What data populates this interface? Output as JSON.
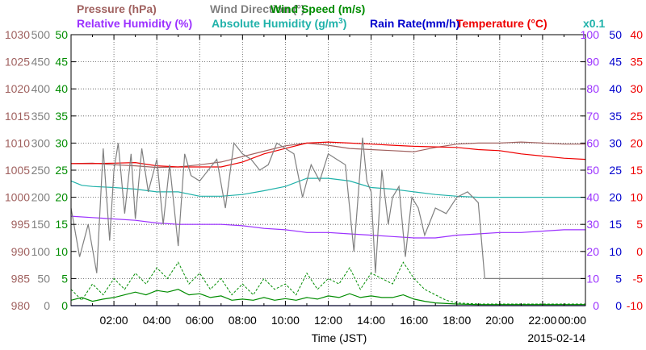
{
  "chart_data": {
    "type": "line",
    "date": "2015-02-14",
    "xlabel": "Time (JST)",
    "x_ticks": [
      "02:00",
      "04:00",
      "06:00",
      "08:00",
      "10:00",
      "12:00",
      "14:00",
      "16:00",
      "18:00",
      "20:00",
      "22:00",
      "00:00"
    ],
    "grid": true,
    "legend_rows": [
      [
        {
          "text": "Pressure (hPa)",
          "color": "#a0615f"
        },
        {
          "text": "Wind Direction (°)",
          "color": "#808080"
        },
        {
          "text": "Wind Speed (m/s)",
          "color": "#008c00"
        }
      ],
      [
        {
          "text": "Relative Humidity (%)",
          "color": "#9b30ff"
        },
        {
          "text": "Absolute Humidity (g/m",
          "color": "#20b2aa",
          "sup": "3",
          "tail": ")"
        },
        {
          "text": "Rain Rate(mm/h)",
          "color": "#0000cd"
        },
        {
          "text": "Temperature (°C)",
          "color": "#ee0000"
        },
        {
          "text": "x0.1",
          "color": "#20b2aa"
        }
      ]
    ],
    "axes": {
      "pressure": {
        "color": "#a0615f",
        "ticks": [
          "1030",
          "1025",
          "1020",
          "1015",
          "1010",
          "1005",
          "1000",
          "995",
          "990",
          "985",
          "980"
        ]
      },
      "wind_dir": {
        "color": "#808080",
        "ticks": [
          "500",
          "450",
          "400",
          "350",
          "300",
          "250",
          "200",
          "150",
          "100",
          "50",
          "0"
        ]
      },
      "wind_speed": {
        "color": "#008c00",
        "ticks": [
          "50",
          "45",
          "40",
          "35",
          "30",
          "25",
          "20",
          "15",
          "10",
          "5",
          "0"
        ]
      },
      "humidity": {
        "color": "#9b30ff",
        "ticks": [
          "100",
          "90",
          "80",
          "70",
          "60",
          "50",
          "40",
          "30",
          "20",
          "10",
          "0"
        ]
      },
      "rain_abs": {
        "color": "#0000cd",
        "ticks": [
          "50",
          "45",
          "40",
          "35",
          "30",
          "25",
          "20",
          "15",
          "10",
          "5",
          "0"
        ]
      },
      "temperature": {
        "color": "#ee0000",
        "ticks": [
          "40",
          "35",
          "30",
          "25",
          "20",
          "15",
          "10",
          "5",
          "0",
          "-5",
          "-10"
        ]
      }
    },
    "x_range_hours": [
      0,
      24
    ],
    "series": [
      {
        "name": "Pressure",
        "unit": "hPa",
        "color": "#a0615f",
        "ylim": [
          980,
          1030
        ],
        "x": [
          0,
          1,
          2,
          3,
          4,
          5,
          6,
          7,
          8,
          9,
          10,
          11,
          12,
          13,
          14,
          15,
          16,
          17,
          18,
          19,
          20,
          21,
          22,
          23,
          24
        ],
        "y": [
          1006.2,
          1006.3,
          1006.0,
          1005.8,
          1005.5,
          1005.6,
          1006.0,
          1006.5,
          1007.5,
          1008.5,
          1009.5,
          1010.0,
          1009.6,
          1009.0,
          1008.8,
          1008.6,
          1008.4,
          1009.2,
          1009.8,
          1010.0,
          1010.0,
          1010.2,
          1010.0,
          1009.8,
          1009.8
        ]
      },
      {
        "name": "Temperature",
        "unit": "°C",
        "color": "#ee0000",
        "ylim": [
          -10,
          40
        ],
        "x": [
          0,
          1,
          2,
          3,
          4,
          5,
          6,
          7,
          8,
          9,
          10,
          11,
          12,
          13,
          14,
          15,
          16,
          17,
          18,
          19,
          20,
          21,
          22,
          23,
          24
        ],
        "y": [
          16.2,
          16.2,
          16.3,
          16.4,
          15.8,
          15.6,
          15.6,
          15.6,
          16.5,
          18.0,
          19.0,
          20.0,
          20.2,
          20.0,
          19.8,
          19.6,
          19.4,
          19.3,
          19.2,
          18.8,
          18.6,
          18.0,
          17.6,
          17.2,
          17.0
        ]
      },
      {
        "name": "Absolute Humidity",
        "unit": "g/m3 x0.1",
        "color": "#20b2aa",
        "ylim": [
          0,
          50
        ],
        "x": [
          0,
          0.5,
          1,
          2,
          3,
          4,
          5,
          6,
          7,
          8,
          9,
          10,
          11,
          12,
          13,
          14,
          15,
          16,
          17,
          18,
          19,
          20,
          21,
          22,
          23,
          24
        ],
        "y": [
          23.0,
          22.2,
          22.0,
          21.8,
          21.5,
          21.0,
          21.0,
          20.2,
          20.2,
          20.5,
          21.2,
          22.0,
          23.5,
          23.5,
          23.0,
          21.8,
          21.5,
          21.0,
          20.5,
          20.2,
          20.0,
          20.0,
          20.0,
          20.0,
          20.0,
          20.0
        ]
      },
      {
        "name": "Relative Humidity",
        "unit": "%",
        "color": "#9b30ff",
        "ylim": [
          0,
          100
        ],
        "x": [
          0,
          1,
          2,
          3,
          4,
          5,
          6,
          7,
          8,
          9,
          10,
          11,
          12,
          13,
          14,
          15,
          16,
          17,
          18,
          19,
          20,
          21,
          22,
          23,
          24
        ],
        "y": [
          33.0,
          32.5,
          32.0,
          31.5,
          30.5,
          30.0,
          30.0,
          30.0,
          29.5,
          28.5,
          28.0,
          27.0,
          27.0,
          26.5,
          26.0,
          25.5,
          25.0,
          25.0,
          26.0,
          26.5,
          27.0,
          27.0,
          27.5,
          28.0,
          28.0
        ]
      },
      {
        "name": "Wind Direction",
        "unit": "°",
        "color": "#808080",
        "ylim": [
          0,
          500
        ],
        "x": [
          0,
          0.4,
          0.8,
          1.2,
          1.5,
          1.8,
          2.0,
          2.2,
          2.5,
          2.8,
          3.0,
          3.3,
          3.6,
          4.0,
          4.3,
          4.6,
          5.0,
          5.3,
          5.6,
          6.0,
          6.4,
          6.8,
          7.2,
          7.6,
          8.0,
          8.4,
          8.8,
          9.2,
          9.6,
          10.0,
          10.4,
          10.8,
          11.2,
          11.6,
          12.0,
          12.4,
          12.8,
          13.2,
          13.6,
          13.8,
          14.0,
          14.2,
          14.5,
          14.8,
          15.0,
          15.3,
          15.6,
          15.9,
          16.2,
          16.5,
          17.0,
          17.5,
          18.0,
          18.5,
          19.0,
          19.3,
          19.5,
          20.0,
          21.0,
          22.0,
          23.0,
          24.0
        ],
        "y": [
          180,
          90,
          150,
          60,
          290,
          120,
          250,
          300,
          170,
          280,
          160,
          290,
          210,
          270,
          150,
          260,
          110,
          280,
          240,
          230,
          250,
          270,
          180,
          300,
          280,
          270,
          250,
          260,
          300,
          290,
          280,
          200,
          260,
          230,
          280,
          270,
          260,
          100,
          310,
          230,
          210,
          60,
          250,
          150,
          200,
          220,
          90,
          200,
          180,
          130,
          180,
          170,
          200,
          210,
          190,
          50,
          50,
          50,
          50,
          50,
          50,
          50
        ]
      },
      {
        "name": "Wind Speed",
        "unit": "m/s",
        "color": "#008c00",
        "ylim": [
          0,
          50
        ],
        "x": [
          0,
          0.5,
          1,
          1.5,
          2,
          2.5,
          3,
          3.5,
          4,
          4.5,
          5,
          5.5,
          6,
          6.5,
          7,
          7.5,
          8,
          8.5,
          9,
          9.5,
          10,
          10.5,
          11,
          11.5,
          12,
          12.5,
          13,
          13.5,
          14,
          14.5,
          15,
          15.5,
          16,
          16.5,
          17,
          18,
          19,
          20,
          21,
          22,
          23,
          24
        ],
        "y": [
          1.0,
          1.5,
          0.8,
          1.2,
          1.5,
          2.0,
          2.5,
          2.0,
          2.8,
          2.5,
          3.0,
          2.0,
          2.2,
          1.5,
          1.8,
          1.0,
          1.2,
          1.0,
          1.5,
          1.0,
          1.3,
          1.0,
          1.5,
          1.2,
          1.8,
          1.5,
          2.2,
          1.5,
          1.8,
          1.5,
          1.5,
          2.0,
          1.2,
          0.8,
          0.5,
          0.3,
          0.2,
          0.2,
          0.2,
          0.2,
          0.2,
          0.2
        ]
      },
      {
        "name": "Wind Speed (max)",
        "unit": "m/s",
        "color": "#008c00",
        "ylim": [
          0,
          50
        ],
        "dashed": true,
        "x": [
          0,
          0.5,
          1,
          1.5,
          2,
          2.5,
          3,
          3.5,
          4,
          4.5,
          5,
          5.5,
          6,
          6.5,
          7,
          7.5,
          8,
          8.5,
          9,
          9.5,
          10,
          10.5,
          11,
          11.5,
          12,
          12.5,
          13,
          13.5,
          14,
          14.5,
          15,
          15.5,
          16,
          16.5,
          17,
          17.5,
          18,
          19,
          20,
          21,
          22,
          23,
          24
        ],
        "y": [
          3,
          1,
          4,
          2,
          5,
          3,
          6,
          4,
          7,
          5,
          8,
          4,
          6,
          3,
          5,
          2,
          4,
          2,
          5,
          3,
          4,
          2,
          6,
          3,
          5,
          4,
          7,
          3,
          6,
          5,
          4,
          8,
          5,
          3,
          2,
          1,
          0.5,
          0.3,
          0.3,
          0.3,
          0.3,
          0.3,
          0.3
        ]
      },
      {
        "name": "Rain Rate",
        "unit": "mm/h",
        "color": "#0000cd",
        "ylim": [
          0,
          50
        ],
        "x": [
          0,
          24
        ],
        "y": [
          0,
          0
        ]
      }
    ]
  }
}
